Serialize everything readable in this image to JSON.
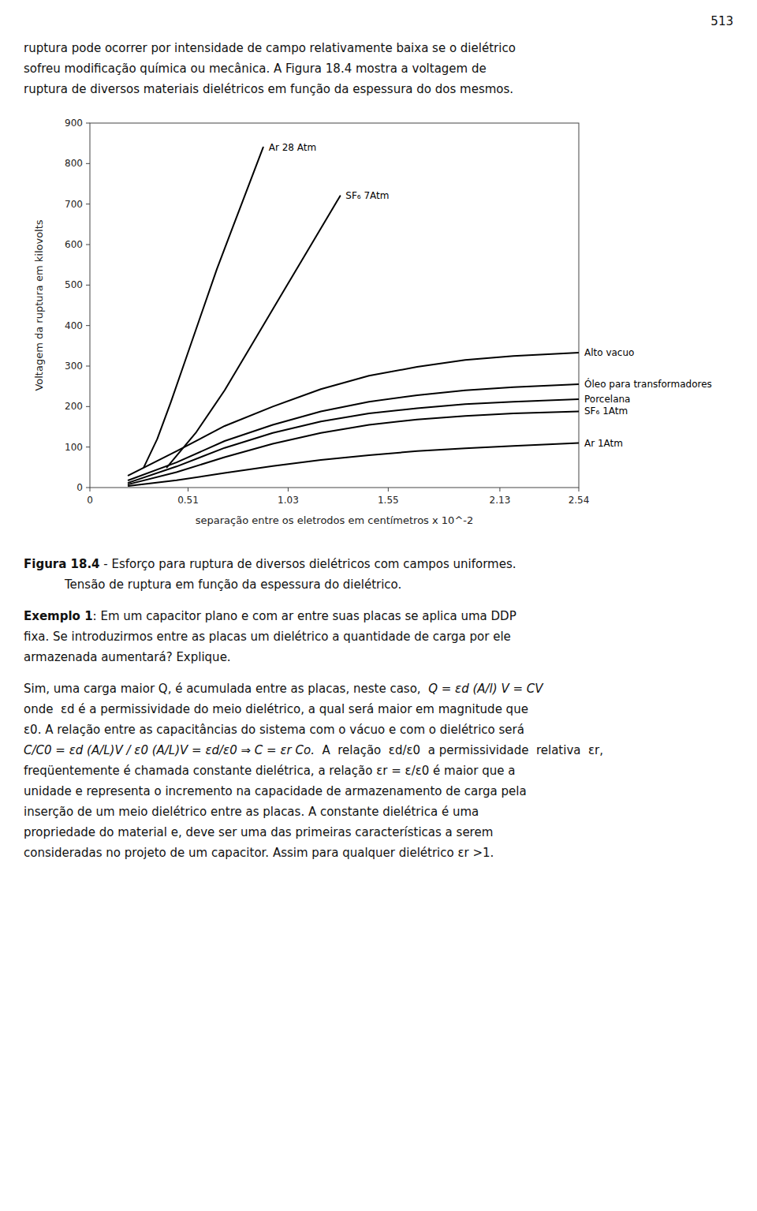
{
  "page_number": "513",
  "upper_text_lines": [
    "ruptura pode ocorrer por intensidade de campo relativamente baixa se o dielétrico",
    "sofreu modificação química ou mecânica. A Figura 18.4 mostra a voltagem de",
    "ruptura de diversos materiais dielétricos em função da espessura do dos mesmos."
  ],
  "chart_data": {
    "type": "line",
    "ylabel": "Voltagem da ruptura em kilovolts",
    "xlabel": "separação entre os eletrodos em centímetros  x 10^-2",
    "xlim": [
      0,
      2.54
    ],
    "ylim": [
      0,
      900
    ],
    "xticks": [
      0,
      0.51,
      1.03,
      1.55,
      2.13,
      2.54
    ],
    "yticks": [
      0,
      100,
      200,
      300,
      400,
      500,
      600,
      700,
      800,
      900
    ],
    "grid": false,
    "series": [
      {
        "name": "Ar 28 Atm",
        "color": "#000000",
        "x": [
          0.28,
          0.35,
          0.42,
          0.5,
          0.58,
          0.66,
          0.74,
          0.82,
          0.9
        ],
        "values": [
          50,
          120,
          210,
          320,
          430,
          540,
          640,
          740,
          840
        ]
      },
      {
        "name": "SF₆ 7Atm",
        "color": "#000000",
        "x": [
          0.4,
          0.55,
          0.7,
          0.85,
          1.0,
          1.15,
          1.3
        ],
        "values": [
          50,
          135,
          240,
          360,
          480,
          600,
          720
        ]
      },
      {
        "name": "Alto vacuo",
        "color": "#000000",
        "x": [
          0.2,
          0.45,
          0.7,
          0.95,
          1.2,
          1.45,
          1.7,
          1.95,
          2.2,
          2.54
        ],
        "values": [
          30,
          90,
          152,
          200,
          243,
          276,
          298,
          315,
          325,
          333
        ]
      },
      {
        "name": "Óleo para transformadores",
        "color": "#000000",
        "x": [
          0.2,
          0.45,
          0.7,
          0.95,
          1.2,
          1.45,
          1.7,
          1.95,
          2.2,
          2.54
        ],
        "values": [
          18,
          62,
          115,
          155,
          188,
          212,
          228,
          240,
          248,
          255
        ]
      },
      {
        "name": "Porcelana",
        "color": "#000000",
        "x": [
          0.2,
          0.45,
          0.7,
          0.95,
          1.2,
          1.45,
          1.7,
          1.95,
          2.2,
          2.54
        ],
        "values": [
          12,
          52,
          98,
          135,
          163,
          183,
          196,
          206,
          212,
          218
        ]
      },
      {
        "name": "SF₆ 1Atm",
        "color": "#000000",
        "x": [
          0.2,
          0.45,
          0.7,
          0.95,
          1.2,
          1.45,
          1.7,
          1.95,
          2.2,
          2.54
        ],
        "values": [
          8,
          38,
          75,
          108,
          135,
          155,
          168,
          177,
          183,
          188
        ]
      },
      {
        "name": "Ar 1Atm",
        "color": "#000000",
        "x": [
          0.2,
          0.45,
          0.7,
          0.95,
          1.2,
          1.45,
          1.7,
          1.95,
          2.2,
          2.54
        ],
        "values": [
          4,
          18,
          36,
          53,
          68,
          80,
          90,
          97,
          103,
          110
        ]
      }
    ]
  },
  "caption_bold": "Figura 18.4",
  "caption_rest": " - Esforço para ruptura de diversos dielétricos com campos uniformes.",
  "caption_line2": "Tensão de ruptura em função da espessura do dielétrico.",
  "exemplo_bold": "Exemplo 1",
  "exemplo_rest": ": Em um capacitor plano e com ar entre suas placas se aplica uma DDP",
  "exemplo_line2": "fixa. Se introduzirmos entre as placas um dielétrico a quantidade de carga por ele",
  "exemplo_line3": "armazenada aumentará? Explique.",
  "sim_line": "Sim, uma carga maior Q, é acumulada entre as placas, neste caso,",
  "sim_formula": "Q = εd (A/l) V = CV",
  "onde_line1": "onde  εd é a permissividade do meio dielétrico, a qual será maior em magnitude que",
  "onde_line2": "ε0. A relação entre as capacitâncias do sistema com o vácuo e com o dielétrico será",
  "formula_line": "C/C0 = εd (A/L)V / ε0 (A/L)V = εd/ε0 ⇒ C = εr Co.",
  "formula_text": "  A  relação  εd/ε0  a permissividade  relativa  εr,",
  "freq_lines": [
    "freqüentemente é chamada constante dielétrica, a relação εr = ε/ε0 é maior que a",
    "unidade e representa o incremento na capacidade de armazenamento de carga pela",
    "inserção de um meio dielétrico entre as placas. A constante dielétrica é uma",
    "propriedade do material e, deve ser uma das primeiras características a serem",
    "consideradas no projeto de um capacitor. Assim para qualquer dielétrico εr >1."
  ]
}
